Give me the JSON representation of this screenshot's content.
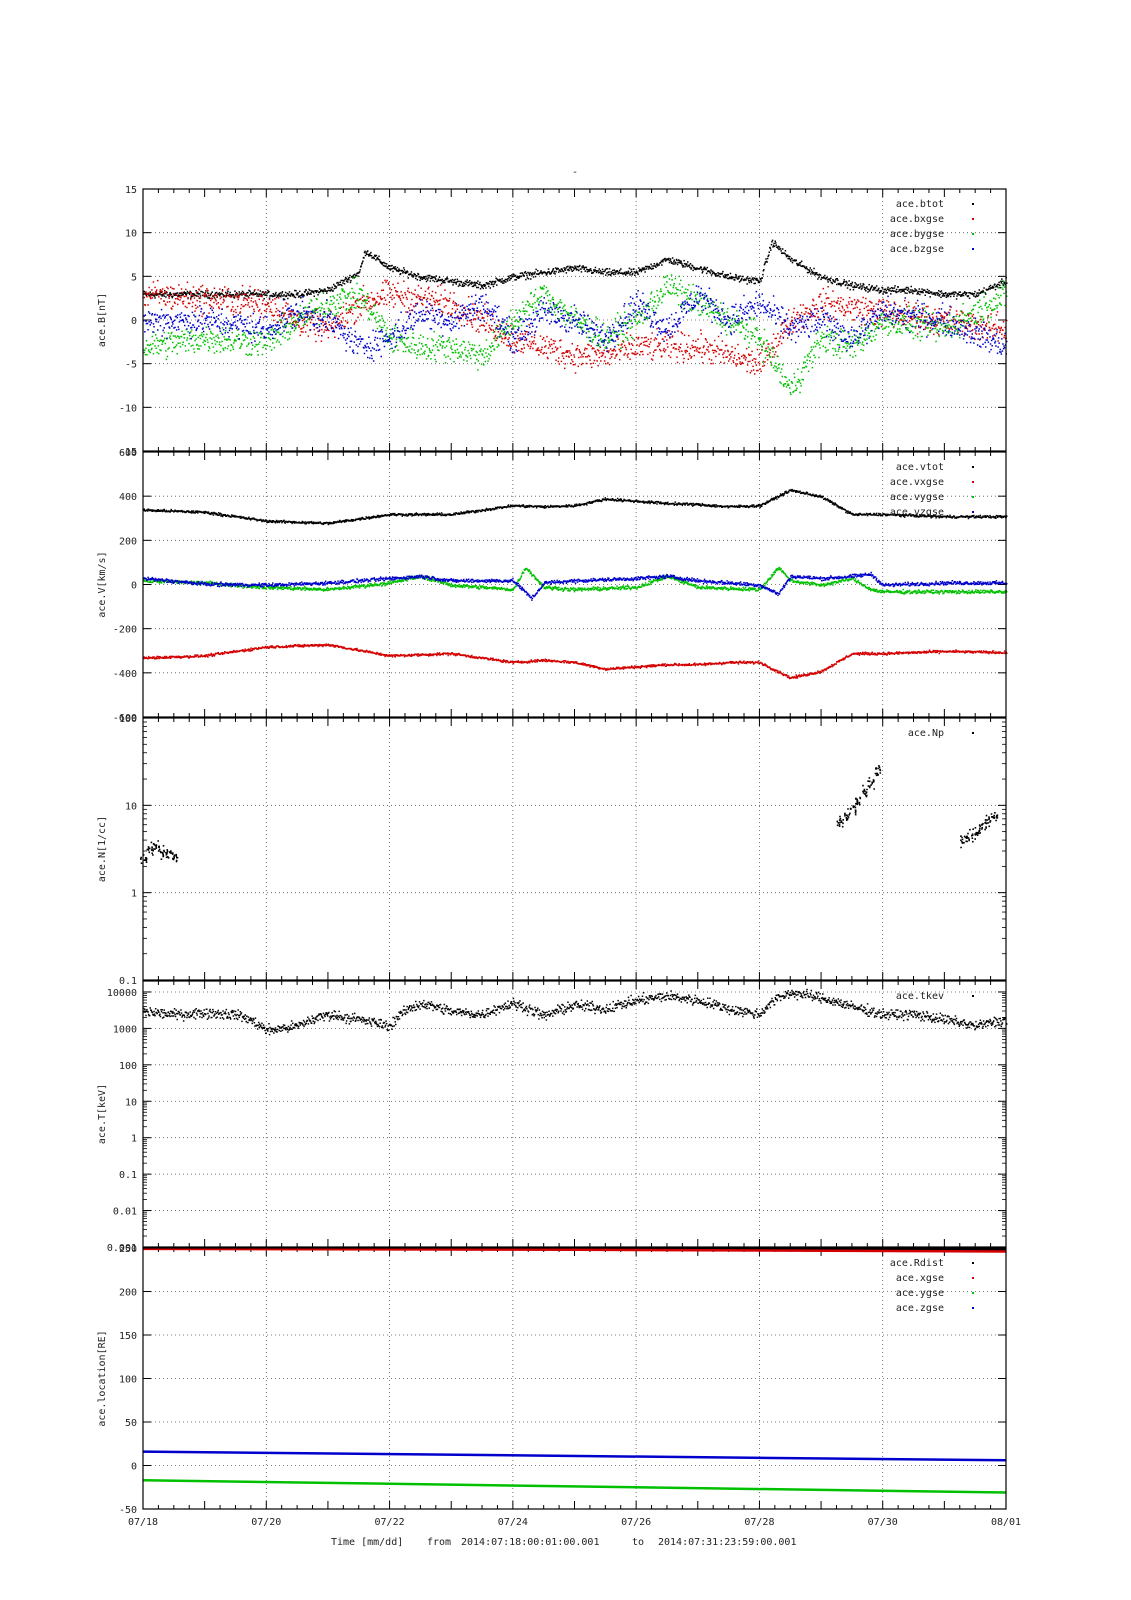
{
  "title": "-",
  "footer": {
    "label": "Time [mm/dd]",
    "from_label": "from",
    "from": "2014:07:18:00:01:00.001",
    "to_label": "to",
    "to": "2014:07:31:23:59:00.001"
  },
  "colors": {
    "black": "#000000",
    "red": "#d40000",
    "green": "#00c000",
    "blue": "#0000cc"
  },
  "chart_data": [
    {
      "type": "scatter",
      "ylabel": "ace.B[nT]",
      "ylim": [
        -15,
        15
      ],
      "log": false,
      "yticks": [
        -15,
        -10,
        -5,
        0,
        5,
        10,
        15
      ],
      "ytick_labels": [
        "-15",
        "-10",
        "-5",
        "0",
        "5",
        "10",
        "15"
      ],
      "x_range_days": [
        "07/18",
        "08/01"
      ],
      "series": [
        {
          "name": "ace.btot",
          "color": "#000000",
          "x": [
            0,
            0.5,
            1,
            1.5,
            2,
            2.5,
            3,
            3.5,
            3.6,
            4,
            4.5,
            5,
            5.5,
            6,
            6.5,
            7,
            7.5,
            8,
            8.5,
            9,
            9.5,
            10,
            10.2,
            10.5,
            11,
            11.5,
            12,
            12.5,
            13,
            13.5,
            14
          ],
          "y": [
            3,
            3,
            3,
            3,
            3,
            3,
            3.5,
            5.5,
            8,
            6,
            5,
            4.5,
            4,
            5,
            5.5,
            6,
            5.5,
            5.5,
            7,
            6,
            5,
            4.5,
            9,
            7,
            5,
            4,
            3.5,
            3.5,
            3,
            3,
            4.5
          ]
        },
        {
          "name": "ace.bxgse",
          "color": "#d40000",
          "x": [
            0,
            1,
            2,
            2.5,
            3,
            3.5,
            4,
            5,
            5.5,
            6,
            7,
            7.5,
            8,
            9,
            9.5,
            10,
            10.5,
            11,
            12,
            13,
            14
          ],
          "y": [
            3,
            2.5,
            2,
            0,
            -1,
            2,
            3,
            2,
            0,
            -2,
            -4,
            -4,
            -3,
            -3,
            -4,
            -5,
            0,
            2,
            1,
            0,
            -1
          ]
        },
        {
          "name": "ace.bygse",
          "color": "#00c000",
          "x": [
            0,
            1,
            2,
            2.5,
            3,
            3.5,
            4,
            4.5,
            5,
            5.5,
            6,
            6.5,
            7,
            7.5,
            8,
            8.5,
            9,
            9.5,
            10,
            10.5,
            11,
            11.5,
            12,
            13,
            14
          ],
          "y": [
            -3,
            -2,
            -2.5,
            0,
            2,
            3,
            -2,
            -3,
            -3,
            -4,
            0,
            3,
            0,
            -2,
            0,
            4,
            2,
            0,
            -2,
            -8,
            -2,
            -3,
            0,
            -1,
            3
          ]
        },
        {
          "name": "ace.bzgse",
          "color": "#0000cc",
          "x": [
            0,
            1,
            2,
            2.5,
            3,
            3.5,
            4,
            4.5,
            5,
            5.5,
            6,
            6.5,
            7,
            7.5,
            8,
            8.5,
            9,
            9.5,
            10,
            10.5,
            11,
            11.5,
            12,
            13,
            14
          ],
          "y": [
            0,
            0,
            -1,
            1,
            0,
            -3,
            -2,
            1,
            0,
            2,
            -2,
            1,
            0,
            -2,
            2,
            -1,
            3,
            0,
            2,
            -1,
            0,
            -2,
            1,
            0,
            -3
          ]
        }
      ]
    },
    {
      "type": "scatter",
      "ylabel": "ace.V[km/s]",
      "ylim": [
        -600,
        600
      ],
      "log": false,
      "yticks": [
        -600,
        -400,
        -200,
        0,
        200,
        400,
        600
      ],
      "ytick_labels": [
        "-600",
        "-400",
        "-200",
        "0",
        "200",
        "400",
        "600"
      ],
      "x_range_days": [
        "07/18",
        "08/01"
      ],
      "series": [
        {
          "name": "ace.vtot",
          "color": "#000000",
          "x": [
            0,
            1,
            2,
            3,
            4,
            5,
            5.5,
            6,
            6.5,
            7,
            7.5,
            8,
            8.5,
            9,
            9.5,
            10,
            10.5,
            11,
            11.5,
            12,
            13,
            14
          ],
          "y": [
            340,
            330,
            290,
            280,
            320,
            320,
            340,
            360,
            355,
            360,
            390,
            380,
            370,
            365,
            355,
            360,
            430,
            400,
            320,
            320,
            310,
            310
          ]
        },
        {
          "name": "ace.vxgse",
          "color": "#d40000",
          "x": [
            0,
            1,
            2,
            3,
            4,
            5,
            5.5,
            6,
            6.5,
            7,
            7.5,
            8,
            8.5,
            9,
            9.5,
            10,
            10.5,
            11,
            11.5,
            12,
            13,
            14
          ],
          "y": [
            -330,
            -320,
            -280,
            -270,
            -320,
            -310,
            -330,
            -350,
            -340,
            -350,
            -380,
            -370,
            -360,
            -360,
            -350,
            -350,
            -420,
            -390,
            -310,
            -310,
            -300,
            -305
          ]
        },
        {
          "name": "ace.vygse",
          "color": "#00c000",
          "x": [
            0,
            1,
            2,
            3,
            4,
            4.5,
            5,
            6,
            6.2,
            6.5,
            7,
            8,
            8.5,
            9,
            10,
            10.3,
            10.5,
            11,
            11.5,
            11.8,
            12,
            13,
            14
          ],
          "y": [
            20,
            10,
            -10,
            -20,
            10,
            40,
            0,
            -20,
            80,
            -10,
            -20,
            -10,
            40,
            -10,
            -20,
            80,
            20,
            0,
            30,
            -20,
            -30,
            -30,
            -30
          ]
        },
        {
          "name": "ace.vzgse",
          "color": "#0000cc",
          "x": [
            0,
            1,
            2,
            3,
            4,
            4.5,
            5,
            6,
            6.3,
            6.5,
            7,
            8,
            8.5,
            9,
            10,
            10.3,
            10.5,
            11,
            11.5,
            11.8,
            12,
            13,
            14
          ],
          "y": [
            30,
            5,
            0,
            10,
            30,
            40,
            20,
            20,
            -60,
            10,
            20,
            30,
            40,
            20,
            0,
            -40,
            40,
            30,
            40,
            50,
            0,
            10,
            10
          ]
        }
      ]
    },
    {
      "type": "scatter",
      "ylabel": "ace.N[1/cc]",
      "ylim": [
        0.1,
        100
      ],
      "log": true,
      "yticks": [
        0.1,
        1,
        10,
        100
      ],
      "ytick_labels": [
        "0.1",
        "1",
        "10",
        "100"
      ],
      "x_range_days": [
        "07/18",
        "08/01"
      ],
      "series": [
        {
          "name": "ace.Np",
          "color": "#000000",
          "x": [
            0.0,
            0.1,
            0.2,
            0.3,
            0.4,
            0.5,
            11.3,
            11.4,
            11.5,
            11.6,
            11.7,
            11.8,
            11.9,
            13.3,
            13.4,
            13.5,
            13.6,
            13.7,
            13.8
          ],
          "y": [
            2.5,
            3.2,
            3.5,
            3.0,
            2.8,
            2.6,
            6.5,
            7.5,
            9,
            11,
            14,
            18,
            25,
            4,
            4.5,
            5,
            5.5,
            6.5,
            7.5
          ]
        }
      ]
    },
    {
      "type": "scatter",
      "ylabel": "ace.T[keV]",
      "ylim": [
        0.001,
        20000
      ],
      "log": true,
      "yticks": [
        0.001,
        0.01,
        0.1,
        1,
        10,
        100,
        1000,
        10000
      ],
      "ytick_labels": [
        "0.001",
        "0.01",
        "0.1",
        "1",
        "10",
        "100",
        "1000",
        "10000"
      ],
      "x_range_days": [
        "07/18",
        "08/01"
      ],
      "series": [
        {
          "name": "ace.tkev",
          "color": "#000000",
          "x": [
            0,
            0.5,
            1,
            1.5,
            2,
            2.5,
            3,
            3.5,
            4,
            4.5,
            5,
            5.5,
            6,
            6.5,
            7,
            7.5,
            8,
            8.5,
            9,
            9.5,
            10,
            10.5,
            11,
            11.5,
            12,
            12.5,
            13,
            13.5,
            14
          ],
          "y": [
            3000,
            2500,
            2800,
            2500,
            900,
            1200,
            2500,
            1800,
            1200,
            5000,
            3000,
            2500,
            5000,
            2200,
            4500,
            3500,
            6000,
            8000,
            6000,
            3500,
            2500,
            10000,
            7000,
            4000,
            2500,
            2500,
            1800,
            1200,
            1800
          ]
        }
      ]
    },
    {
      "type": "line",
      "ylabel": "ace.location[RE]",
      "ylim": [
        -50,
        250
      ],
      "log": false,
      "yticks": [
        -50,
        0,
        50,
        100,
        150,
        200,
        250
      ],
      "ytick_labels": [
        "-50",
        "0",
        "50",
        "100",
        "150",
        "200",
        "250"
      ],
      "x_range_days": [
        "07/18",
        "08/01"
      ],
      "series": [
        {
          "name": "ace.Rdist",
          "color": "#000000",
          "x": [
            0,
            14
          ],
          "y": [
            250,
            248
          ]
        },
        {
          "name": "ace.xgse",
          "color": "#d40000",
          "x": [
            0,
            7,
            14
          ],
          "y": [
            249,
            248,
            246
          ]
        },
        {
          "name": "ace.ygse",
          "color": "#00c000",
          "x": [
            0,
            14
          ],
          "y": [
            -17,
            -31
          ]
        },
        {
          "name": "ace.zgse",
          "color": "#0000cc",
          "x": [
            0,
            14
          ],
          "y": [
            16,
            6
          ]
        }
      ]
    }
  ],
  "x_ticks": [
    "07/18",
    "07/20",
    "07/22",
    "07/24",
    "07/26",
    "07/28",
    "07/30",
    "08/01"
  ]
}
